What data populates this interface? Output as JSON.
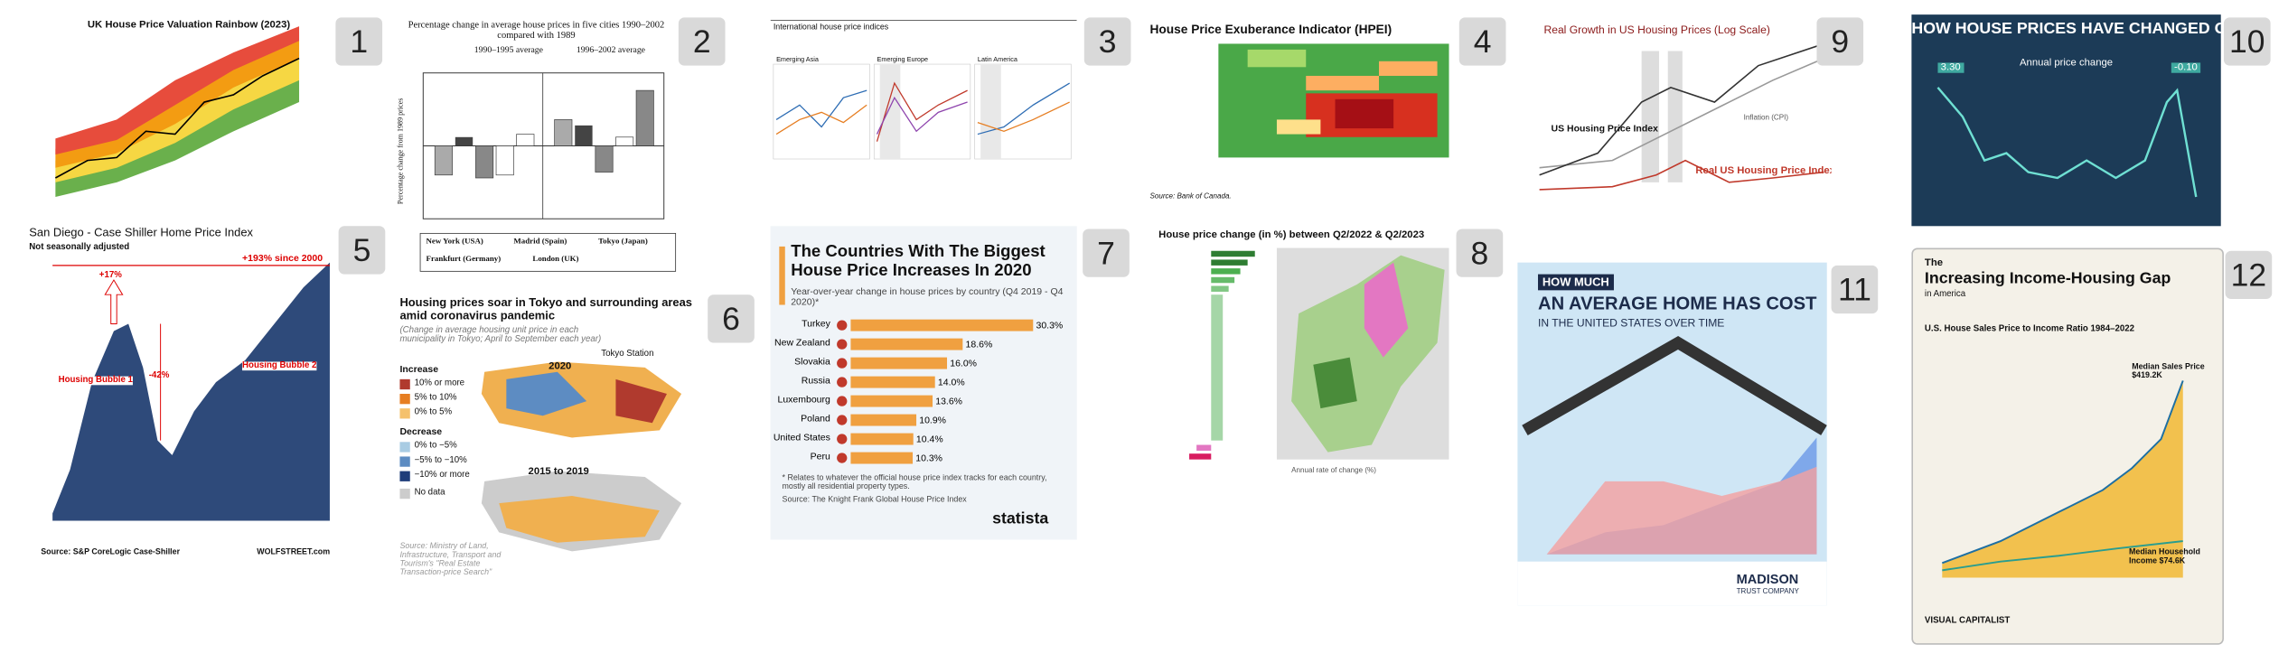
{
  "panels": [
    {
      "badge": "1",
      "title": "UK House Price Valuation Rainbow (2023)"
    },
    {
      "badge": "2",
      "title": "Percentage change in average house prices in five cities 1990–2002 compared with 1989",
      "groups": [
        "1990–1995 average",
        "1996–2002 average"
      ],
      "y_label": "Percentage change from 1989 prices",
      "legend": [
        "New York (USA)",
        "Madrid (Spain)",
        "Tokyo (Japan)",
        "Frankfurt (Germany)",
        "London (UK)"
      ]
    },
    {
      "badge": "3",
      "title": "International house price indices",
      "subplots": [
        "Emerging Asia",
        "Emerging Europe",
        "Latin America"
      ]
    },
    {
      "badge": "4",
      "title": "House Price Exuberance Indicator (HPEI)",
      "source": "Source: Bank of Canada."
    },
    {
      "badge": "9",
      "title": "Real Growth in US Housing Prices (Log Scale)",
      "labels": [
        "US Housing Price Index",
        "Inflation (CPI)",
        "Real US Housing Price Index"
      ]
    },
    {
      "badge": "10",
      "title": "HOW HOUSE PRICES HAVE CHANGED OVER THE YEARS",
      "subtitle": "Annual price change",
      "tags": [
        "3.30",
        "-0.10"
      ]
    },
    {
      "badge": "5",
      "title": "San Diego - Case Shiller Home Price Index",
      "subtitle": "Not seasonally adjusted",
      "labels": [
        "+193% since 2000",
        "+17%",
        "-42%",
        "Housing Bubble 1",
        "Housing Bubble 2"
      ],
      "source": "Source: S&P CoreLogic Case-Shiller",
      "site": "WOLFSTREET.com"
    },
    {
      "badge": "6",
      "title": "Housing prices soar in Tokyo and surrounding areas amid coronavirus pandemic",
      "subtitle": "(Change in average housing unit price in each municipality in Tokyo; April to September each year)",
      "legend_titles": [
        "Increase",
        "Decrease"
      ],
      "legend": [
        "10% or more",
        "5% to 10%",
        "0% to 5%",
        "0% to −5%",
        "−5% to −10%",
        "−10% or more",
        "No data"
      ],
      "maps": [
        "2020",
        "2015 to 2019"
      ],
      "tokyo_station": "Tokyo Station",
      "source": "Source: Ministry of Land, Infrastructure, Transport and Tourism's \"Real Estate Transaction-price Search\""
    },
    {
      "badge": "7",
      "title": "The Countries With The Biggest House Price Increases In 2020",
      "subtitle": "Year-over-year change in house prices by country (Q4 2019 - Q4 2020)*",
      "note": "* Relates to whatever the official house price index tracks for each country, mostly all residential property types.",
      "source": "Source: The Knight Frank Global House Price Index",
      "brand": "statista",
      "chart": {
        "type": "bar",
        "categories": [
          "Turkey",
          "New Zealand",
          "Slovakia",
          "Russia",
          "Luxembourg",
          "Poland",
          "United States",
          "Peru"
        ],
        "values": [
          30.3,
          18.6,
          16.0,
          14.0,
          13.6,
          10.9,
          10.4,
          10.3
        ],
        "value_labels": [
          "30.3%",
          "18.6%",
          "16.0%",
          "14.0%",
          "13.6%",
          "10.9%",
          "10.4%",
          "10.3%"
        ],
        "color": "#f0a040"
      }
    },
    {
      "badge": "8",
      "title": "House price change (in %) between Q2/2022 & Q2/2023",
      "axis_label": "Annual rate of change (%)"
    },
    {
      "badge": "11",
      "title_lines": [
        "HOW MUCH",
        "AN AVERAGE HOME HAS COST",
        "IN THE UNITED STATES OVER TIME"
      ],
      "brand": [
        "MADISON",
        "TRUST COMPANY"
      ]
    },
    {
      "badge": "12",
      "title_lines": [
        "The",
        "Increasing Income-Housing Gap",
        "in America"
      ],
      "subtitle": "U.S. House Sales Price to Income Ratio 1984–2022",
      "labels": [
        "Median Sales Price $419.2K",
        "Median Household Income $74.6K"
      ],
      "brand": "VISUAL CAPITALIST"
    }
  ]
}
